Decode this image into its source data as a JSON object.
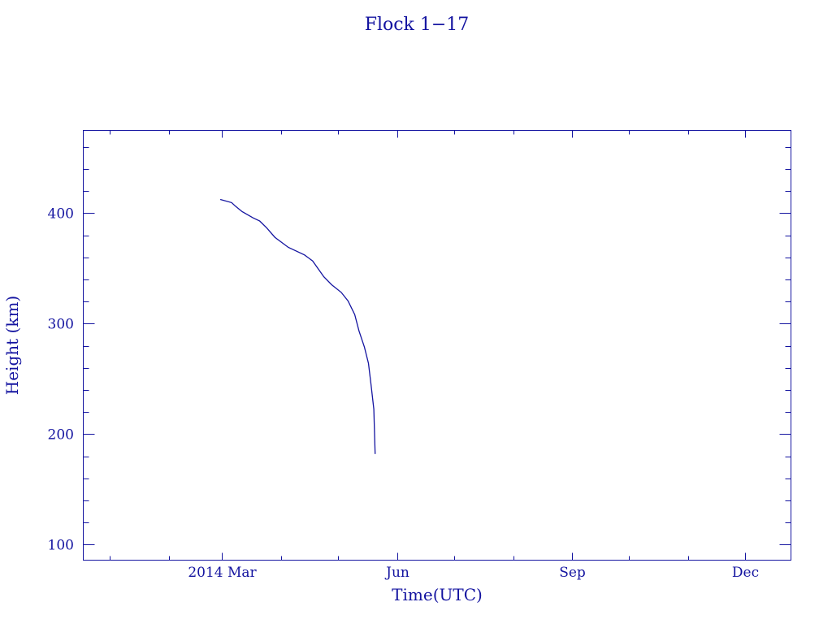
{
  "chart_data": {
    "type": "line",
    "title": "Flock 1−17",
    "xlabel": "Time(UTC)",
    "ylabel": "Height (km)",
    "xlim": [
      "2013-12-18",
      "2014-12-25"
    ],
    "ylim": [
      86,
      475
    ],
    "x_major_ticks": [
      {
        "date": "2014-03-01",
        "label": "2014 Mar"
      },
      {
        "date": "2014-06-01",
        "label": "Jun"
      },
      {
        "date": "2014-09-01",
        "label": "Sep"
      },
      {
        "date": "2014-12-01",
        "label": "Dec"
      }
    ],
    "x_minor_ticks": [
      "2014-01-01",
      "2014-02-01",
      "2014-04-01",
      "2014-05-01",
      "2014-07-01",
      "2014-08-01",
      "2014-10-01",
      "2014-11-01"
    ],
    "y_major_ticks": [
      100,
      200,
      300,
      400
    ],
    "y_minor_step": 20,
    "grid": false,
    "color": "#1414a0",
    "series": [
      {
        "points": [
          [
            "2014-02-28T00:00",
            412.5
          ],
          [
            "2014-03-06T00:00",
            409.6
          ],
          [
            "2014-03-08T00:00",
            406.4
          ],
          [
            "2014-03-11T12:00",
            401.5
          ],
          [
            "2014-03-17T06:00",
            395.8
          ],
          [
            "2014-03-20T18:00",
            392.9
          ],
          [
            "2014-03-24T10:00",
            386.8
          ],
          [
            "2014-03-28T17:00",
            378.2
          ],
          [
            "2014-04-04T19:00",
            369.1
          ],
          [
            "2014-04-13T07:00",
            362.3
          ],
          [
            "2014-04-17T14:00",
            356.8
          ],
          [
            "2014-04-23T10:00",
            342.6
          ],
          [
            "2014-04-27T14:00",
            335.3
          ],
          [
            "2014-05-02T14:00",
            328.4
          ],
          [
            "2014-05-06T05:00",
            320.6
          ],
          [
            "2014-05-09T17:00",
            308.3
          ],
          [
            "2014-05-11T22:00",
            293.6
          ],
          [
            "2014-05-14T19:00",
            278.9
          ],
          [
            "2014-05-16T22:00",
            264.2
          ],
          [
            "2014-05-18T07:00",
            244.6
          ],
          [
            "2014-05-19T17:00",
            222.6
          ],
          [
            "2014-05-20T10:00",
            182.1
          ]
        ]
      }
    ]
  }
}
